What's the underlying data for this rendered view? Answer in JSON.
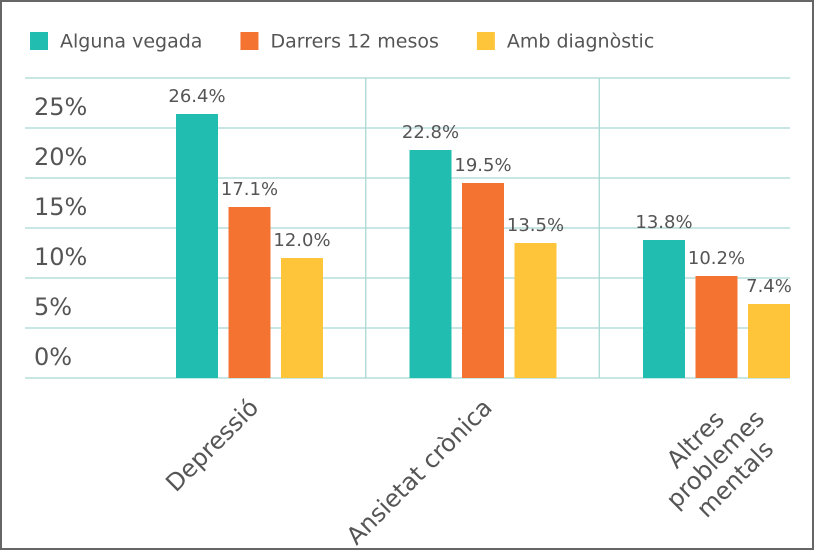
{
  "chart_data": {
    "type": "bar",
    "categories": [
      "Depressió",
      "Ansietat crònica",
      "Altres\nproblemes\nmentals"
    ],
    "series": [
      {
        "name": "Alguna vegada",
        "color": "#21bdb0",
        "values": [
          26.4,
          22.8,
          13.8
        ],
        "value_labels": [
          "26.4%",
          "22.8%",
          "13.8%"
        ]
      },
      {
        "name": "Darrers 12 mesos",
        "color": "#f47330",
        "values": [
          17.1,
          19.5,
          10.2
        ],
        "value_labels": [
          "17.1%",
          "19.5%",
          "10.2%"
        ]
      },
      {
        "name": "Amb diagnòstic",
        "color": "#fec43a",
        "values": [
          12.0,
          13.5,
          7.4
        ],
        "value_labels": [
          "12.0%",
          "13.5%",
          "7.4%"
        ]
      }
    ],
    "ylim": [
      0,
      30
    ],
    "yticks": [
      {
        "value": 0,
        "label": "0%"
      },
      {
        "value": 5,
        "label": "5%"
      },
      {
        "value": 10,
        "label": "10%"
      },
      {
        "value": 15,
        "label": "15%"
      },
      {
        "value": 20,
        "label": "20%"
      },
      {
        "value": 25,
        "label": "25%"
      }
    ],
    "grid": true,
    "legend": "top"
  }
}
